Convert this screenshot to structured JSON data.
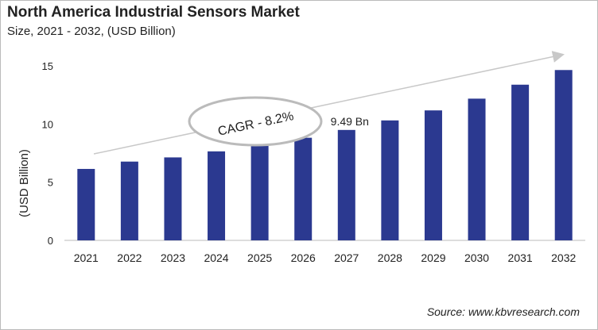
{
  "chart_data": {
    "type": "bar",
    "title": "North America Industrial Sensors Market",
    "subtitle": "Size, 2021 - 2032, (USD Billion)",
    "xlabel": "",
    "ylabel": "(USD Billion)",
    "ylim": [
      0,
      15
    ],
    "yticks": [
      0,
      5,
      10,
      15
    ],
    "categories": [
      "2021",
      "2022",
      "2023",
      "2024",
      "2025",
      "2026",
      "2027",
      "2028",
      "2029",
      "2030",
      "2031",
      "2032"
    ],
    "values": [
      6.14,
      6.77,
      7.13,
      7.65,
      8.19,
      8.82,
      9.49,
      10.31,
      11.17,
      12.18,
      13.38,
      14.64
    ],
    "data_labels": [
      {
        "category": "2027",
        "text": "9.49 Bn"
      }
    ],
    "annotation": "CAGR - 8.2%",
    "grid": false,
    "bar_color": "#2b3990",
    "source": "Source: www.kbvresearch.com"
  }
}
